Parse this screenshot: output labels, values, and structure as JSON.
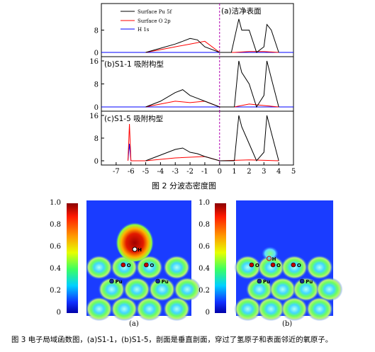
{
  "figure2": {
    "caption": "图 2   分波态密度图",
    "legend": [
      "Surface Pu 5f",
      "Surface O 2p",
      "H 1s"
    ],
    "legend_colors": [
      "#000000",
      "#ff0000",
      "#0000ff"
    ],
    "panel_labels": [
      "(a)洁净表面",
      "(b)S1-1 吸附构型",
      "(c)S1-5 吸附构型"
    ],
    "y_ticks": [
      [
        "0",
        "8"
      ],
      [
        "0",
        "8",
        "16"
      ],
      [
        "0",
        "8",
        "16"
      ]
    ],
    "x_ticks": [
      "-7",
      "-6",
      "-5",
      "-4",
      "-3",
      "-2",
      "-1",
      "0",
      "1",
      "2",
      "3",
      "4",
      "5"
    ]
  },
  "figure3": {
    "caption": "图 3   电子局域函数图，(a)S1-1，(b)S1-5，剖面是垂直剖面，穿过了氢原子和表面邻近的氧原子。",
    "colorbar_ticks": [
      "1.0",
      "0.8",
      "0.6",
      "0.4",
      "0.2",
      "0"
    ],
    "panel_labels": [
      "(a)",
      "(b)"
    ],
    "atom_labels": {
      "h": "H",
      "o": "O",
      "pu": "Pu"
    }
  },
  "chart_data": [
    {
      "type": "line",
      "title": "(a)洁净表面",
      "xlim": [
        -8,
        5
      ],
      "ylim": [
        0,
        16
      ],
      "y_ticks": [
        0,
        8
      ],
      "fermi_level": 0,
      "series": [
        {
          "name": "Surface Pu 5f",
          "x": [
            -5,
            -4,
            -3,
            -2.5,
            -2,
            -1.5,
            -1,
            0,
            0.8,
            1.3,
            1.5,
            2,
            2.5,
            3,
            3.2,
            3.5,
            4
          ],
          "y": [
            0,
            1.5,
            3,
            4,
            5,
            4.5,
            2,
            0,
            0,
            12,
            8,
            8,
            0,
            2,
            10,
            8,
            0
          ]
        },
        {
          "name": "Surface O 2p",
          "x": [
            -5,
            -4,
            -3,
            -2,
            -1,
            0,
            1,
            2,
            3,
            4
          ],
          "y": [
            0,
            1,
            2,
            3,
            4,
            0,
            0,
            0.3,
            0.3,
            0
          ]
        },
        {
          "name": "H 1s",
          "x": [
            -8,
            5
          ],
          "y": [
            0,
            0
          ]
        }
      ]
    },
    {
      "type": "line",
      "title": "(b)S1-1 吸附构型",
      "xlim": [
        -8,
        5
      ],
      "ylim": [
        0,
        16
      ],
      "y_ticks": [
        0,
        8,
        16
      ],
      "fermi_level": 0,
      "series": [
        {
          "name": "Surface Pu 5f",
          "x": [
            -5,
            -4,
            -3,
            -2.5,
            -2,
            -1.5,
            -1,
            0,
            1,
            1.3,
            1.5,
            2,
            2.5,
            3,
            3.2,
            3.5,
            4
          ],
          "y": [
            0,
            2,
            5,
            6,
            4,
            3,
            2,
            0,
            0,
            16,
            12,
            8,
            0,
            4,
            16,
            10,
            0
          ]
        },
        {
          "name": "Surface O 2p",
          "x": [
            -5,
            -4,
            -3,
            -2,
            -1,
            0,
            1,
            2,
            3,
            4
          ],
          "y": [
            0,
            1,
            2,
            1.5,
            2,
            0,
            0,
            1,
            0.5,
            0
          ]
        },
        {
          "name": "H 1s",
          "x": [
            -8,
            5
          ],
          "y": [
            0,
            0
          ]
        }
      ]
    },
    {
      "type": "line",
      "title": "(c)S1-5 吸附构型",
      "xlim": [
        -8,
        5
      ],
      "ylim": [
        0,
        16
      ],
      "y_ticks": [
        0,
        8,
        16
      ],
      "fermi_level": 0,
      "series": [
        {
          "name": "Surface Pu 5f",
          "x": [
            -5,
            -4,
            -3,
            -2.5,
            -2,
            -1.5,
            -1,
            0,
            1,
            1.3,
            1.5,
            2,
            2.5,
            3,
            3.2,
            3.5,
            4
          ],
          "y": [
            0,
            2,
            4,
            4.5,
            3,
            2.5,
            1.5,
            0,
            0,
            16,
            12,
            6,
            0,
            3,
            16,
            10,
            0
          ]
        },
        {
          "name": "Surface O 2p",
          "x": [
            -6.2,
            -6.1,
            -6,
            -5,
            -3,
            -1,
            0,
            2,
            4
          ],
          "y": [
            0,
            13,
            0,
            0,
            1,
            1.5,
            0,
            0.3,
            0
          ]
        },
        {
          "name": "H 1s",
          "x": [
            -6.2,
            -6.1,
            -6,
            -5
          ],
          "y": [
            0,
            6,
            0,
            0
          ]
        }
      ]
    }
  ]
}
